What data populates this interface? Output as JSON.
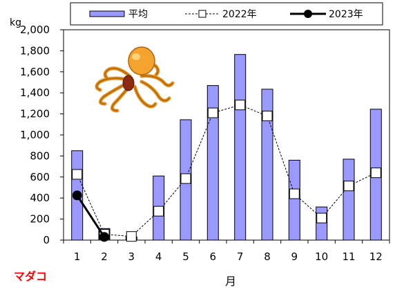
{
  "chart_data": {
    "type": "bar",
    "unit": "kg",
    "xlabel": "月",
    "species_label": "マダコ",
    "categories": [
      "1",
      "2",
      "3",
      "4",
      "5",
      "6",
      "7",
      "8",
      "9",
      "10",
      "11",
      "12"
    ],
    "ylim": [
      0,
      2000
    ],
    "yticks": [
      0,
      200,
      400,
      600,
      800,
      1000,
      1200,
      1400,
      1600,
      1800,
      2000
    ],
    "ytick_labels": [
      "0",
      "200",
      "400",
      "600",
      "800",
      "1,000",
      "1,200",
      "1,400",
      "1,600",
      "1,800",
      "2,000"
    ],
    "grid": false,
    "legend_position": "top",
    "series": [
      {
        "name": "平均",
        "kind": "bar",
        "color": "#9999ff",
        "values": [
          850,
          110,
          30,
          610,
          1145,
          1470,
          1765,
          1435,
          760,
          315,
          770,
          1245
        ]
      },
      {
        "name": "2022年",
        "kind": "line-dashed-square",
        "values": [
          625,
          55,
          35,
          275,
          585,
          1210,
          1285,
          1180,
          440,
          210,
          515,
          640
        ]
      },
      {
        "name": "2023年",
        "kind": "line-solid-circle",
        "values": [
          425,
          30,
          null,
          null,
          null,
          null,
          null,
          null,
          null,
          null,
          null,
          null
        ]
      }
    ]
  }
}
